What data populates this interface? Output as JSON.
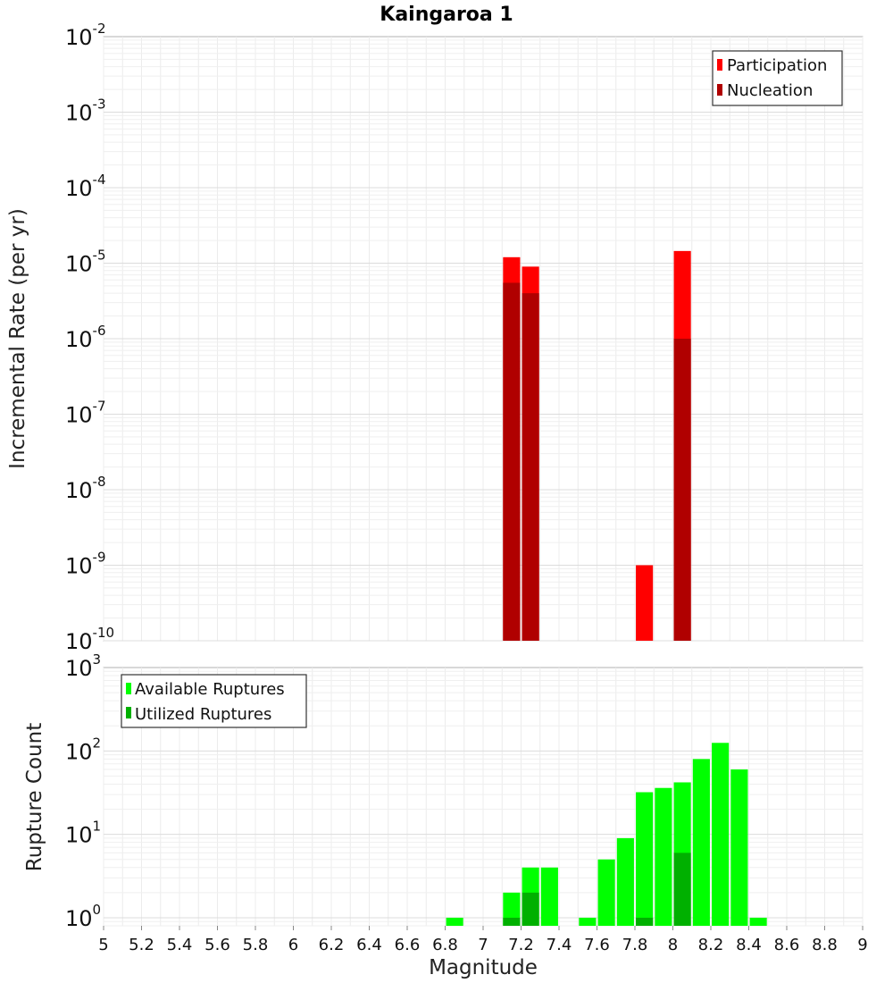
{
  "chart_data": [
    {
      "type": "bar",
      "title": "Kaingaroa 1",
      "xlabel": "",
      "ylabel": "Incremental Rate (per yr)",
      "yscale": "log",
      "ylim": [
        1e-10,
        0.01
      ],
      "xlim": [
        5,
        9
      ],
      "grid": true,
      "legend_placement": "top-right",
      "y_tick_exponents": [
        "-2",
        "-3",
        "-4",
        "-5",
        "-6",
        "-7",
        "-8",
        "-9",
        "-10"
      ],
      "series": [
        {
          "name": "Participation",
          "color": "#ff0000",
          "points": [
            {
              "x": 7.15,
              "y": 1.2e-05
            },
            {
              "x": 7.25,
              "y": 9e-06
            },
            {
              "x": 7.85,
              "y": 1e-09
            },
            {
              "x": 8.05,
              "y": 1.45e-05
            }
          ]
        },
        {
          "name": "Nucleation",
          "color": "#b00000",
          "points": [
            {
              "x": 7.15,
              "y": 5.5e-06
            },
            {
              "x": 7.25,
              "y": 4e-06
            },
            {
              "x": 8.05,
              "y": 1e-06
            }
          ]
        }
      ]
    },
    {
      "type": "bar",
      "title": "",
      "xlabel": "Magnitude",
      "ylabel": "Rupture Count",
      "yscale": "log",
      "ylim": [
        0.8,
        1000
      ],
      "xlim": [
        5,
        9
      ],
      "grid": true,
      "legend_placement": "top-left",
      "y_tick_exponents": [
        "3",
        "2",
        "1",
        "0"
      ],
      "x_tick_labels": [
        "5",
        "5.2",
        "5.4",
        "5.6",
        "5.8",
        "6",
        "6.2",
        "6.4",
        "6.6",
        "6.8",
        "7",
        "7.2",
        "7.4",
        "7.6",
        "7.8",
        "8",
        "8.2",
        "8.4",
        "8.6",
        "8.8",
        "9"
      ],
      "series": [
        {
          "name": "Available Ruptures",
          "color": "#00ff00",
          "points": [
            {
              "x": 6.85,
              "y": 1
            },
            {
              "x": 7.15,
              "y": 2
            },
            {
              "x": 7.25,
              "y": 4
            },
            {
              "x": 7.35,
              "y": 4
            },
            {
              "x": 7.55,
              "y": 1
            },
            {
              "x": 7.65,
              "y": 5
            },
            {
              "x": 7.75,
              "y": 9
            },
            {
              "x": 7.85,
              "y": 32
            },
            {
              "x": 7.95,
              "y": 36
            },
            {
              "x": 8.05,
              "y": 42
            },
            {
              "x": 8.15,
              "y": 80
            },
            {
              "x": 8.25,
              "y": 125
            },
            {
              "x": 8.35,
              "y": 60
            },
            {
              "x": 8.45,
              "y": 1
            }
          ]
        },
        {
          "name": "Utilized Ruptures",
          "color": "#00b000",
          "points": [
            {
              "x": 7.15,
              "y": 1
            },
            {
              "x": 7.25,
              "y": 2
            },
            {
              "x": 7.85,
              "y": 1
            },
            {
              "x": 8.05,
              "y": 6
            }
          ]
        }
      ]
    }
  ]
}
